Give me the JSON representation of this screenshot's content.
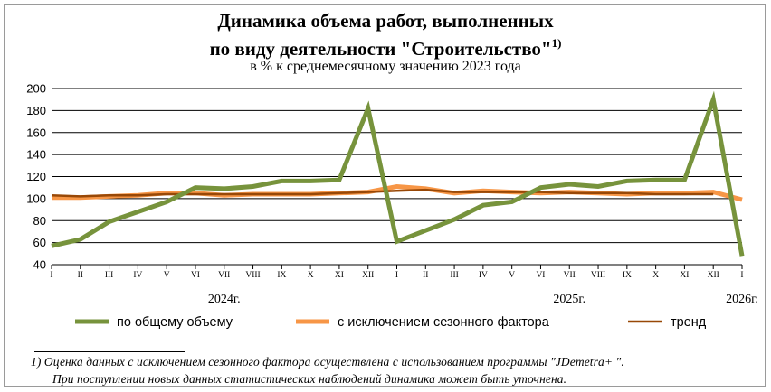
{
  "title_line1": "Динамика объема работ, выполненных",
  "title_line2": "по виду деятельности \"Строительство\"",
  "title_sup": "1)",
  "subtitle": "в % к среднемесячному значению 2023  года",
  "footnote_line1": "1) Оценка данных с исключением сезонного фактора осуществлена с использованием программы \"JDemetra+ \".",
  "footnote_line2": "При поступлении новых данных статистических наблюдений динамика может быть уточнена.",
  "colors": {
    "total": "#77933c",
    "seasonal": "#f79646",
    "trend": "#984807",
    "grid": "#000000"
  },
  "chart_data": {
    "type": "line",
    "ylim": [
      40,
      200
    ],
    "yticks": [
      40,
      60,
      80,
      100,
      120,
      140,
      160,
      180,
      200
    ],
    "grid": "horizontal",
    "legend_position": "bottom",
    "categories": [
      "I",
      "II",
      "III",
      "IV",
      "V",
      "VI",
      "VII",
      "VIII",
      "IX",
      "X",
      "XI",
      "XII",
      "I",
      "II",
      "III",
      "IV",
      "V",
      "VI",
      "VII",
      "VIII",
      "IX",
      "X",
      "XI",
      "XII",
      "I"
    ],
    "year_labels": [
      {
        "label": "2024г.",
        "month_index": 6
      },
      {
        "label": "2025г.",
        "month_index": 18
      },
      {
        "label": "2026г.",
        "month_index": 24
      }
    ],
    "series": [
      {
        "name": "по общему объему",
        "color_key": "total",
        "values": [
          57,
          63,
          79,
          88,
          97,
          110,
          109,
          111,
          116,
          116,
          117,
          182,
          61,
          71,
          81,
          94,
          97,
          110,
          113,
          111,
          116,
          117,
          117,
          190,
          48
        ]
      },
      {
        "name": "с исключением  сезонного фактора",
        "color_key": "seasonal",
        "values": [
          101,
          101,
          102,
          103,
          105,
          105,
          103,
          104,
          104,
          104,
          105,
          106,
          111,
          109,
          105,
          107,
          106,
          105,
          106,
          105,
          104,
          105,
          105,
          106,
          99
        ]
      },
      {
        "name": "тренд",
        "color_key": "trend",
        "values": [
          103,
          102,
          103,
          103,
          104,
          104,
          104,
          104,
          104,
          104,
          105,
          106,
          107,
          108,
          106,
          106,
          106,
          106,
          105,
          105,
          105,
          104,
          104,
          104,
          null
        ]
      }
    ]
  }
}
